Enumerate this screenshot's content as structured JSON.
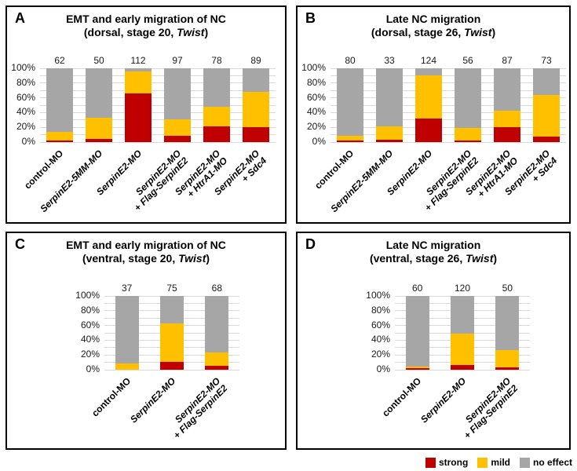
{
  "legend": {
    "items": [
      {
        "label": "strong",
        "color": "#c00000"
      },
      {
        "label": "mild",
        "color": "#ffc000"
      },
      {
        "label": "no effect",
        "color": "#a6a6a6"
      }
    ]
  },
  "chart_data": [
    {
      "type": "bar",
      "stacked": true,
      "panel": "A",
      "title": "EMT and early migration of NC",
      "subtitle": {
        "prefix": "(dorsal, stage 20, ",
        "italic": "Twist",
        "suffix": ")"
      },
      "ylabel": "",
      "ylim": [
        0,
        100
      ],
      "gridline_step": 10,
      "yticks": [
        "0%",
        "20%",
        "40%",
        "60%",
        "80%",
        "100%"
      ],
      "categories": [
        {
          "lines": [
            "control-MO"
          ],
          "italic": false
        },
        {
          "lines": [
            "SerpinE2-5MM-MO"
          ],
          "italic": true
        },
        {
          "lines": [
            "SerpinE2-MO"
          ],
          "italic": true
        },
        {
          "lines": [
            "SerpinE2-MO",
            "+ Flag-SerpinE2"
          ],
          "italic": true
        },
        {
          "lines": [
            "SerpinE2-MO",
            "+ HtrA1-MO"
          ],
          "italic": true
        },
        {
          "lines": [
            "SerpinE2-MO",
            "+ Sdc4"
          ],
          "italic": true
        }
      ],
      "n_values": [
        62,
        50,
        112,
        97,
        78,
        89
      ],
      "series": [
        {
          "name": "strong",
          "values": [
            2,
            4,
            66,
            9,
            21,
            20
          ]
        },
        {
          "name": "mild",
          "values": [
            12,
            29,
            30,
            22,
            27,
            48
          ]
        },
        {
          "name": "no effect",
          "values": [
            86,
            67,
            4,
            69,
            52,
            32
          ]
        }
      ]
    },
    {
      "type": "bar",
      "stacked": true,
      "panel": "B",
      "title": "Late NC migration",
      "subtitle": {
        "prefix": "(dorsal, stage 26, ",
        "italic": "Twist",
        "suffix": ")"
      },
      "ylabel": "",
      "ylim": [
        0,
        100
      ],
      "gridline_step": 10,
      "yticks": [
        "0%",
        "20%",
        "40%",
        "60%",
        "80%",
        "100%"
      ],
      "categories": [
        {
          "lines": [
            "control-MO"
          ],
          "italic": false
        },
        {
          "lines": [
            "SerpinE2-5MM-MO"
          ],
          "italic": true
        },
        {
          "lines": [
            "SerpinE2-MO"
          ],
          "italic": true
        },
        {
          "lines": [
            "SerpinE2-MO",
            "+ Flag-SerpinE2"
          ],
          "italic": true
        },
        {
          "lines": [
            "SerpinE2-MO",
            "+ HtrA1-MO"
          ],
          "italic": true
        },
        {
          "lines": [
            "SerpinE2-MO",
            "+ Sdc4"
          ],
          "italic": true
        }
      ],
      "n_values": [
        80,
        33,
        124,
        56,
        87,
        73
      ],
      "series": [
        {
          "name": "strong",
          "values": [
            2,
            3,
            32,
            2,
            20,
            7
          ]
        },
        {
          "name": "mild",
          "values": [
            7,
            18,
            58,
            17,
            23,
            57
          ]
        },
        {
          "name": "no effect",
          "values": [
            91,
            79,
            10,
            81,
            57,
            36
          ]
        }
      ]
    },
    {
      "type": "bar",
      "stacked": true,
      "panel": "C",
      "title": "EMT and early migration of NC",
      "subtitle": {
        "prefix": "(ventral, stage 20, ",
        "italic": "Twist",
        "suffix": ")"
      },
      "ylabel": "",
      "ylim": [
        0,
        100
      ],
      "gridline_step": 10,
      "yticks": [
        "0%",
        "20%",
        "40%",
        "60%",
        "80%",
        "100%"
      ],
      "categories": [
        {
          "lines": [
            "control-MO"
          ],
          "italic": false
        },
        {
          "lines": [
            "SerpinE2-MO"
          ],
          "italic": true
        },
        {
          "lines": [
            "SerpinE2-MO",
            "+ Flag-SerpinE2"
          ],
          "italic": true
        }
      ],
      "n_values": [
        37,
        75,
        68
      ],
      "series": [
        {
          "name": "strong",
          "values": [
            0,
            11,
            5
          ]
        },
        {
          "name": "mild",
          "values": [
            8,
            52,
            18
          ]
        },
        {
          "name": "no effect",
          "values": [
            92,
            37,
            77
          ]
        }
      ]
    },
    {
      "type": "bar",
      "stacked": true,
      "panel": "D",
      "title": "Late NC migration",
      "subtitle": {
        "prefix": "(ventral, stage 26, ",
        "italic": "Twist",
        "suffix": ")"
      },
      "ylabel": "",
      "ylim": [
        0,
        100
      ],
      "gridline_step": 10,
      "yticks": [
        "0%",
        "20%",
        "40%",
        "60%",
        "80%",
        "100%"
      ],
      "categories": [
        {
          "lines": [
            "control-MO"
          ],
          "italic": false
        },
        {
          "lines": [
            "SerpinE2-MO"
          ],
          "italic": true
        },
        {
          "lines": [
            "SerpinE2-MO",
            "+ Flag-SerpinE2"
          ],
          "italic": true
        }
      ],
      "n_values": [
        60,
        120,
        50
      ],
      "series": [
        {
          "name": "strong",
          "values": [
            2,
            6,
            3
          ]
        },
        {
          "name": "mild",
          "values": [
            2,
            43,
            24
          ]
        },
        {
          "name": "no effect",
          "values": [
            96,
            51,
            73
          ]
        }
      ]
    }
  ]
}
